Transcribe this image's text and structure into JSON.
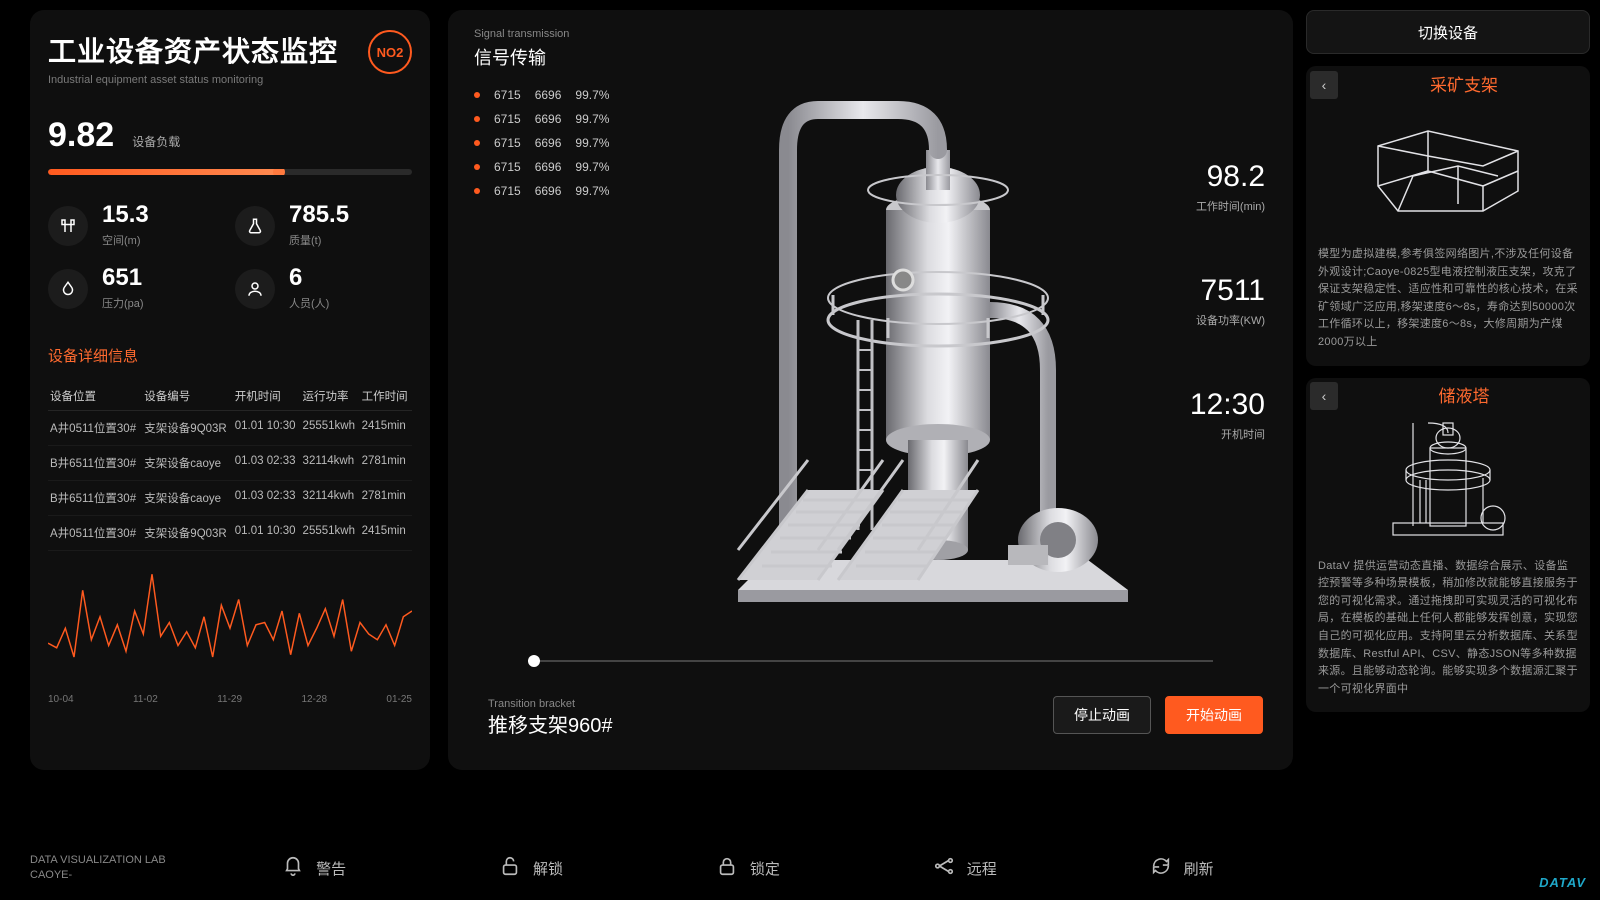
{
  "colors": {
    "accent": "#ff5a1f",
    "accent2": "#ff6a2f",
    "bg": "#000",
    "panel": "#0f0f0f",
    "text": "#ccc",
    "muted": "#888"
  },
  "left": {
    "title": "工业设备资产状态监控",
    "subtitle": "Industrial equipment asset status monitoring",
    "badge": "NO2",
    "load_value": "9.82",
    "load_label": "设备负载",
    "progress_pct": 64,
    "metrics": [
      {
        "icon": "gate",
        "value": "15.3",
        "label": "空间(m)"
      },
      {
        "icon": "flask",
        "value": "785.5",
        "label": "质量(t)"
      },
      {
        "icon": "drop",
        "value": "651",
        "label": "压力(pa)"
      },
      {
        "icon": "person",
        "value": "6",
        "label": "人员(人)"
      }
    ],
    "detail_title": "设备详细信息",
    "columns": [
      "设备位置",
      "设备编号",
      "开机时间",
      "运行功率",
      "工作时间"
    ],
    "rows": [
      [
        "A井0511位置30#",
        "支架设备9Q03R",
        "01.01 10:30",
        "25551kwh",
        "2415min"
      ],
      [
        "B井6511位置30#",
        "支架设备caoye",
        "01.03 02:33",
        "32114kwh",
        "2781min"
      ],
      [
        "B井6511位置30#",
        "支架设备caoye",
        "01.03 02:33",
        "32114kwh",
        "2781min"
      ],
      [
        "A井0511位置30#",
        "支架设备9Q03R",
        "01.01 10:30",
        "25551kwh",
        "2415min"
      ]
    ],
    "chart": {
      "type": "line",
      "color": "#ff5a1f",
      "ylim": [
        0,
        100
      ],
      "x_labels": [
        "10-04",
        "11-02",
        "11-29",
        "12-28",
        "01-25"
      ],
      "values": [
        32,
        28,
        45,
        20,
        78,
        35,
        55,
        30,
        48,
        25,
        60,
        40,
        92,
        38,
        50,
        30,
        42,
        28,
        55,
        20,
        65,
        45,
        70,
        30,
        48,
        50,
        35,
        60,
        22,
        58,
        30,
        45,
        62,
        38,
        70,
        25,
        50,
        40,
        35,
        48,
        30,
        55,
        60
      ]
    }
  },
  "center": {
    "signal_sub": "Signal transmission",
    "signal_title": "信号传输",
    "signals": [
      {
        "a": "6715",
        "b": "6696",
        "c": "99.7%"
      },
      {
        "a": "6715",
        "b": "6696",
        "c": "99.7%"
      },
      {
        "a": "6715",
        "b": "6696",
        "c": "99.7%"
      },
      {
        "a": "6715",
        "b": "6696",
        "c": "99.7%"
      },
      {
        "a": "6715",
        "b": "6696",
        "c": "99.7%"
      }
    ],
    "stats": [
      {
        "value": "98.2",
        "label": "工作时间(min)"
      },
      {
        "value": "7511",
        "label": "设备功率(KW)"
      },
      {
        "value": "12:30",
        "label": "开机时间"
      }
    ],
    "trans_sub": "Transition bracket",
    "trans_title": "推移支架960#",
    "btn_stop": "停止动画",
    "btn_start": "开始动画"
  },
  "right": {
    "switch": "切换设备",
    "cards": [
      {
        "title": "采矿支架",
        "desc": "模型为虚拟建模,参考俱签网络图片,不涉及任何设备外观设计;Caoye-0825型电液控制液压支架，攻克了保证支架稳定性、适应性和可靠性的核心技术，在采矿领域广泛应用,移架速度6～8s，寿命达到50000次工作循环以上，移架速度6～8s，大修周期为产煤2000万以上"
      },
      {
        "title": "储液塔",
        "desc": "DataV 提供运营动态直播、数据综合展示、设备监控预警等多种场景模板，稍加修改就能够直接服务于您的可视化需求。通过拖拽即可实现灵活的可视化布局，在模板的基础上任何人都能够发挥创意，实现您自己的可视化应用。支持阿里云分析数据库、关系型数据库、Restful API、CSV、静态JSON等多种数据来源。且能够动态轮询。能够实现多个数据源汇聚于一个可视化界面中"
      }
    ]
  },
  "bottom": {
    "lab1": "DATA VISUALIZATION LAB",
    "lab2": "CAOYE-",
    "items": [
      {
        "icon": "alert",
        "label": "警告"
      },
      {
        "icon": "unlock",
        "label": "解锁"
      },
      {
        "icon": "lock",
        "label": "锁定"
      },
      {
        "icon": "remote",
        "label": "远程"
      },
      {
        "icon": "refresh",
        "label": "刷新"
      }
    ],
    "logo": "DATAV"
  }
}
